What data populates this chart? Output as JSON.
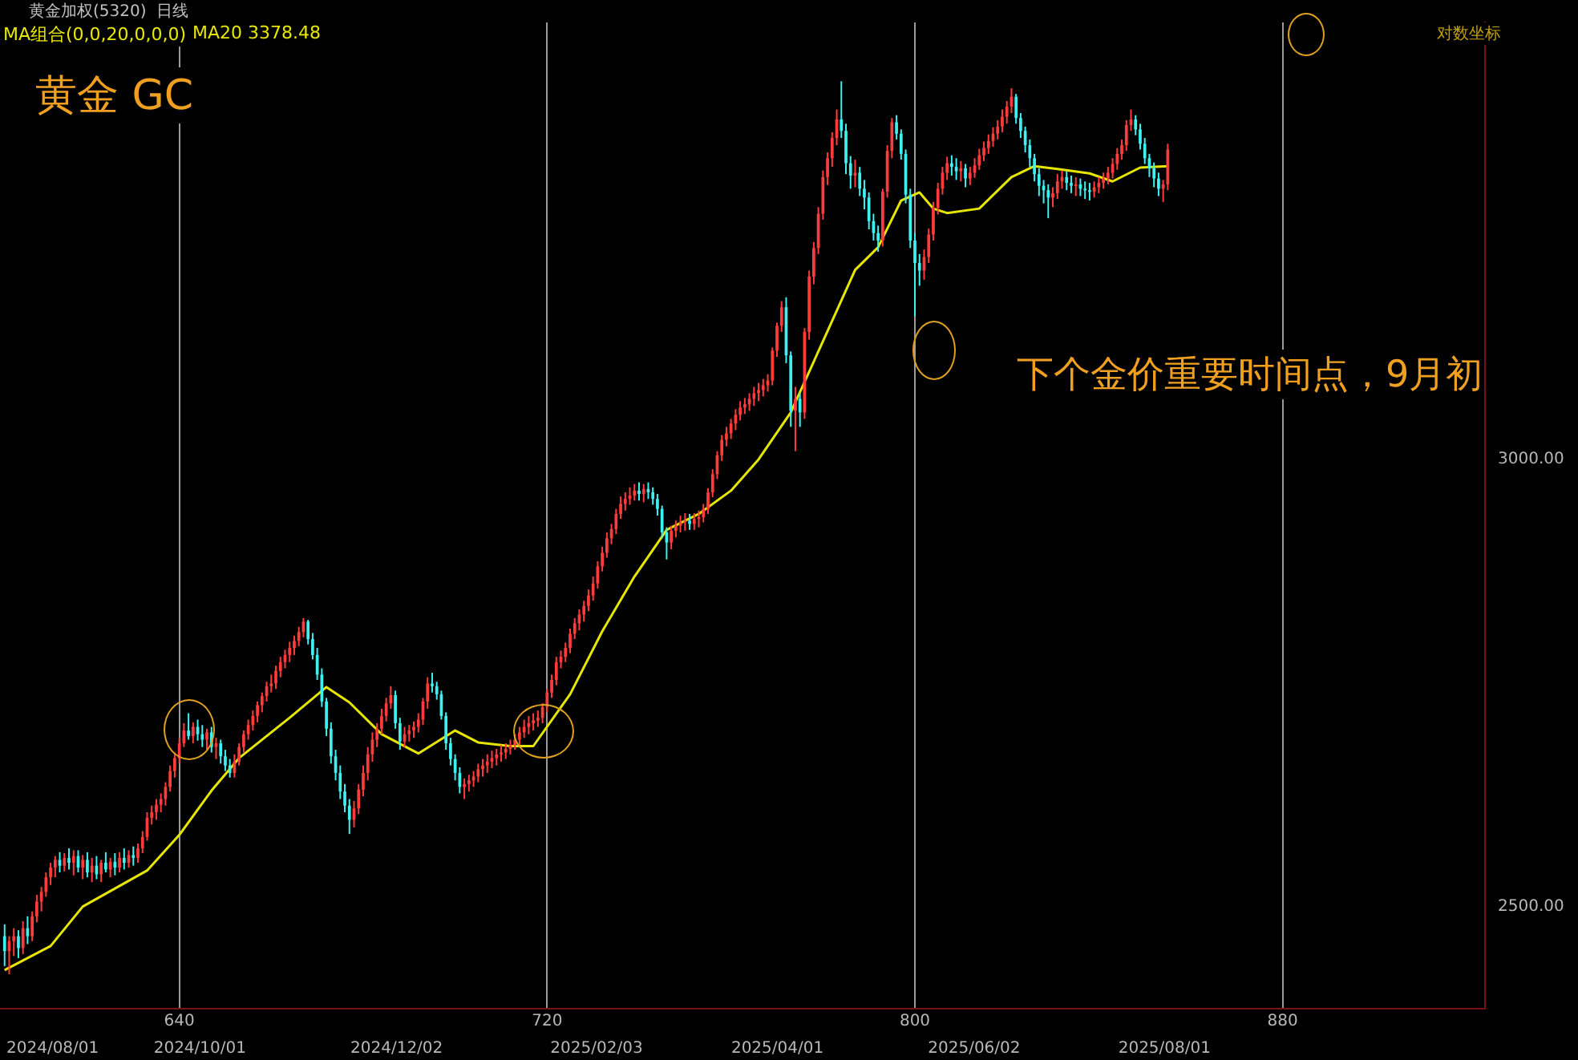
{
  "chart_data": {
    "type": "candlestick",
    "title": "黄金 GC",
    "subtitle": "黄金加权(5320)  日线",
    "annotations": [
      "MA组合(0,0,20,0,0,0)",
      "对数坐标",
      "下个金价重要时间点，9月初"
    ],
    "xlim": [
      601,
      924
    ],
    "xticks": [
      640,
      720,
      800,
      880
    ],
    "x2lim": [
      "2024-07-30",
      "2025-11-10"
    ],
    "x2ticks": [
      {
        "value": "2024-08-01",
        "label": "2024/08/01"
      },
      {
        "value": "2024-10-01",
        "label": "2024/10/01"
      },
      {
        "value": "2024-12-02",
        "label": "2024/12/02"
      },
      {
        "value": "2025-02-03",
        "label": "2025/02/03"
      },
      {
        "value": "2025-04-01",
        "label": "2025/04/01"
      },
      {
        "value": "2025-06-02",
        "label": "2025/06/02"
      },
      {
        "value": "2025-08-01",
        "label": "2025/08/01"
      }
    ],
    "ylim": [
      2398,
      3585
    ],
    "yticks": [
      {
        "value": 2500,
        "label": "2500.00"
      },
      {
        "value": 3000,
        "label": "3000.00"
      }
    ],
    "log": "y",
    "grid": "x",
    "legend": "top left",
    "series": [
      {
        "colors": [
          "#3ef0f0",
          "#ff3b3b",
          "#ff3b3b",
          "#3ef0f0",
          "#ff3b3b",
          "#3ef0f0",
          "#ff3b3b",
          "#ff3b3b",
          "#ff3b3b",
          "#ff3b3b",
          "#ff3b3b",
          "#ff3b3b",
          "#3ef0f0",
          "#ff3b3b",
          "#3ef0f0",
          "#ff3b3b",
          "#3ef0f0",
          "#ff3b3b",
          "#3ef0f0",
          "#ff3b3b",
          "#3ef0f0",
          "#ff3b3b",
          "#3ef0f0",
          "#ff3b3b",
          "#3ef0f0",
          "#ff3b3b",
          "#3ef0f0",
          "#ff3b3b",
          "#3ef0f0",
          "#ff3b3b",
          "#ff3b3b",
          "#ff3b3b",
          "#ff3b3b",
          "#ff3b3b",
          "#ff3b3b",
          "#ff3b3b",
          "#ff3b3b",
          "#ff3b3b",
          "#ff3b3b",
          "#ff3b3b",
          "#3ef0f0",
          "#ff3b3b",
          "#3ef0f0",
          "#3ef0f0",
          "#ff3b3b",
          "#3ef0f0",
          "#ff3b3b",
          "#3ef0f0",
          "#3ef0f0",
          "#3ef0f0",
          "#ff3b3b",
          "#ff3b3b",
          "#ff3b3b",
          "#ff3b3b",
          "#ff3b3b",
          "#ff3b3b",
          "#ff3b3b",
          "#ff3b3b",
          "#ff3b3b",
          "#ff3b3b",
          "#ff3b3b",
          "#ff3b3b",
          "#ff3b3b",
          "#ff3b3b",
          "#ff3b3b",
          "#ff3b3b",
          "#3ef0f0",
          "#3ef0f0",
          "#3ef0f0",
          "#3ef0f0",
          "#3ef0f0",
          "#3ef0f0",
          "#3ef0f0",
          "#3ef0f0",
          "#3ef0f0",
          "#3ef0f0",
          "#ff3b3b",
          "#ff3b3b",
          "#ff3b3b",
          "#ff3b3b",
          "#ff3b3b",
          "#ff3b3b",
          "#ff3b3b",
          "#ff3b3b",
          "#ff3b3b",
          "#3ef0f0",
          "#3ef0f0",
          "#ff3b3b",
          "#ff3b3b",
          "#ff3b3b",
          "#ff3b3b",
          "#ff3b3b",
          "#ff3b3b",
          "#3ef0f0",
          "#3ef0f0",
          "#3ef0f0",
          "#3ef0f0",
          "#3ef0f0",
          "#3ef0f0",
          "#3ef0f0",
          "#ff3b3b",
          "#ff3b3b",
          "#ff3b3b",
          "#ff3b3b",
          "#ff3b3b",
          "#ff3b3b",
          "#ff3b3b",
          "#ff3b3b",
          "#ff3b3b",
          "#ff3b3b",
          "#ff3b3b",
          "#ff3b3b",
          "#ff3b3b",
          "#ff3b3b",
          "#ff3b3b",
          "#ff3b3b",
          "#ff3b3b",
          "#ff3b3b",
          "#ff3b3b",
          "#ff3b3b",
          "#ff3b3b",
          "#ff3b3b",
          "#ff3b3b",
          "#ff3b3b",
          "#ff3b3b",
          "#ff3b3b",
          "#ff3b3b",
          "#ff3b3b",
          "#ff3b3b",
          "#ff3b3b",
          "#ff3b3b",
          "#ff3b3b",
          "#ff3b3b",
          "#ff3b3b",
          "#ff3b3b",
          "#ff3b3b",
          "#ff3b3b",
          "#ff3b3b",
          "#3ef0f0",
          "#ff3b3b",
          "#3ef0f0",
          "#3ef0f0",
          "#3ef0f0",
          "#3ef0f0",
          "#3ef0f0",
          "#ff3b3b",
          "#ff3b3b",
          "#ff3b3b",
          "#ff3b3b",
          "#3ef0f0",
          "#ff3b3b",
          "#ff3b3b",
          "#ff3b3b",
          "#ff3b3b",
          "#ff3b3b",
          "#ff3b3b",
          "#ff3b3b",
          "#ff3b3b",
          "#ff3b3b",
          "#ff3b3b",
          "#ff3b3b",
          "#ff3b3b",
          "#ff3b3b",
          "#ff3b3b",
          "#ff3b3b",
          "#ff3b3b",
          "#ff3b3b",
          "#ff3b3b",
          "#ff3b3b",
          "#ff3b3b",
          "#3ef0f0",
          "#3ef0f0",
          "#ff3b3b",
          "#3ef0f0",
          "#ff3b3b",
          "#ff3b3b",
          "#ff3b3b",
          "#ff3b3b",
          "#ff3b3b",
          "#ff3b3b",
          "#ff3b3b",
          "#ff3b3b",
          "#3ef0f0",
          "#3ef0f0",
          "#3ef0f0",
          "#ff3b3b",
          "#3ef0f0",
          "#3ef0f0",
          "#3ef0f0",
          "#3ef0f0",
          "#3ef0f0",
          "#ff3b3b",
          "#ff3b3b",
          "#ff3b3b",
          "#3ef0f0",
          "#3ef0f0",
          "#3ef0f0",
          "#3ef0f0",
          "#3ef0f0",
          "#3ef0f0",
          "#ff3b3b",
          "#ff3b3b",
          "#ff3b3b",
          "#ff3b3b",
          "#ff3b3b",
          "#ff3b3b",
          "#3ef0f0",
          "#3ef0f0",
          "#ff3b3b",
          "#3ef0f0",
          "#ff3b3b",
          "#ff3b3b",
          "#ff3b3b",
          "#ff3b3b",
          "#ff3b3b",
          "#ff3b3b",
          "#ff3b3b",
          "#ff3b3b",
          "#ff3b3b",
          "#ff3b3b",
          "#3ef0f0",
          "#3ef0f0",
          "#3ef0f0",
          "#3ef0f0",
          "#3ef0f0",
          "#3ef0f0",
          "#3ef0f0",
          "#3ef0f0",
          "#ff3b3b",
          "#ff3b3b",
          "#ff3b3b",
          "#3ef0f0",
          "#3ef0f0",
          "#ff3b3b",
          "#3ef0f0",
          "#3ef0f0",
          "#3ef0f0",
          "#ff3b3b",
          "#ff3b3b",
          "#ff3b3b",
          "#ff3b3b",
          "#ff3b3b",
          "#ff3b3b",
          "#ff3b3b",
          "#ff3b3b",
          "#ff3b3b",
          "#3ef0f0",
          "#3ef0f0",
          "#3ef0f0",
          "#3ef0f0",
          "#3ef0f0",
          "#3ef0f0",
          "#ff3b3b",
          "#ff3b3b"
        ],
        "x": [
          602,
          603,
          604,
          605,
          606,
          607,
          608,
          609,
          610,
          611,
          612,
          613,
          614,
          615,
          616,
          617,
          618,
          619,
          620,
          621,
          622,
          623,
          624,
          625,
          626,
          627,
          628,
          629,
          630,
          631,
          632,
          633,
          634,
          635,
          636,
          637,
          638,
          639,
          640,
          641,
          642,
          643,
          644,
          645,
          646,
          647,
          648,
          649,
          650,
          651,
          652,
          653,
          654,
          655,
          656,
          657,
          658,
          659,
          660,
          661,
          662,
          663,
          664,
          665,
          666,
          667,
          668,
          669,
          670,
          671,
          672,
          673,
          674,
          675,
          676,
          677,
          678,
          679,
          680,
          681,
          682,
          683,
          684,
          685,
          686,
          687,
          688,
          689,
          690,
          691,
          692,
          693,
          694,
          695,
          696,
          697,
          698,
          699,
          700,
          701,
          702,
          703,
          704,
          705,
          706,
          707,
          708,
          709,
          710,
          711,
          712,
          713,
          714,
          715,
          716,
          717,
          718,
          719,
          720,
          721,
          722,
          723,
          724,
          725,
          726,
          727,
          728,
          729,
          730,
          731,
          732,
          733,
          734,
          735,
          736,
          737,
          738,
          739,
          740,
          741,
          742,
          743,
          744,
          745,
          746,
          747,
          748,
          749,
          750,
          751,
          752,
          753,
          754,
          755,
          756,
          757,
          758,
          759,
          760,
          761,
          762,
          763,
          764,
          765,
          766,
          767,
          768,
          769,
          770,
          771,
          772,
          773,
          774,
          775,
          776,
          777,
          778,
          779,
          780,
          781,
          782,
          783,
          784,
          785,
          786,
          787,
          788,
          789,
          790,
          791,
          792,
          793,
          794,
          795,
          796,
          797,
          798,
          799,
          800,
          801,
          802,
          803,
          804,
          805,
          806,
          807,
          808,
          809,
          810,
          811,
          812,
          813,
          814,
          815,
          816,
          817,
          818,
          819,
          820,
          821,
          822,
          823,
          824,
          825,
          826,
          827,
          828,
          829,
          830,
          831,
          832,
          833,
          834,
          835,
          836,
          837,
          838,
          839,
          840,
          841,
          842,
          843,
          844,
          845,
          846,
          847,
          848,
          849,
          850,
          851,
          852,
          853,
          854,
          855
        ],
        "ohlc": [
          [
            2470,
            2482,
            2440,
            2455
          ],
          [
            2455,
            2470,
            2432,
            2465
          ],
          [
            2465,
            2478,
            2450,
            2470
          ],
          [
            2470,
            2476,
            2448,
            2458
          ],
          [
            2458,
            2485,
            2452,
            2478
          ],
          [
            2478,
            2490,
            2462,
            2470
          ],
          [
            2470,
            2495,
            2465,
            2490
          ],
          [
            2490,
            2512,
            2484,
            2505
          ],
          [
            2505,
            2520,
            2495,
            2515
          ],
          [
            2515,
            2535,
            2510,
            2530
          ],
          [
            2530,
            2545,
            2522,
            2540
          ],
          [
            2540,
            2552,
            2530,
            2548
          ],
          [
            2548,
            2556,
            2535,
            2542
          ],
          [
            2542,
            2555,
            2536,
            2550
          ],
          [
            2550,
            2560,
            2538,
            2545
          ],
          [
            2545,
            2558,
            2532,
            2552
          ],
          [
            2552,
            2558,
            2535,
            2540
          ],
          [
            2540,
            2553,
            2528,
            2548
          ],
          [
            2548,
            2556,
            2530,
            2535
          ],
          [
            2535,
            2550,
            2525,
            2542
          ],
          [
            2542,
            2552,
            2528,
            2533
          ],
          [
            2533,
            2548,
            2525,
            2545
          ],
          [
            2545,
            2556,
            2535,
            2538
          ],
          [
            2538,
            2550,
            2530,
            2546
          ],
          [
            2546,
            2555,
            2532,
            2540
          ],
          [
            2540,
            2556,
            2535,
            2550
          ],
          [
            2550,
            2560,
            2538,
            2545
          ],
          [
            2545,
            2558,
            2540,
            2553
          ],
          [
            2553,
            2562,
            2542,
            2550
          ],
          [
            2550,
            2565,
            2545,
            2560
          ],
          [
            2560,
            2578,
            2555,
            2572
          ],
          [
            2572,
            2598,
            2568,
            2592
          ],
          [
            2592,
            2605,
            2585,
            2598
          ],
          [
            2598,
            2612,
            2590,
            2606
          ],
          [
            2606,
            2618,
            2598,
            2612
          ],
          [
            2612,
            2630,
            2605,
            2625
          ],
          [
            2625,
            2648,
            2620,
            2642
          ],
          [
            2642,
            2662,
            2635,
            2656
          ],
          [
            2656,
            2678,
            2650,
            2672
          ],
          [
            2672,
            2694,
            2668,
            2686
          ],
          [
            2686,
            2705,
            2676,
            2680
          ],
          [
            2680,
            2695,
            2672,
            2690
          ],
          [
            2690,
            2698,
            2675,
            2682
          ],
          [
            2682,
            2692,
            2668,
            2676
          ],
          [
            2676,
            2688,
            2665,
            2684
          ],
          [
            2684,
            2690,
            2662,
            2668
          ],
          [
            2668,
            2678,
            2655,
            2672
          ],
          [
            2672,
            2676,
            2650,
            2658
          ],
          [
            2658,
            2665,
            2642,
            2648
          ],
          [
            2648,
            2655,
            2635,
            2640
          ],
          [
            2640,
            2660,
            2635,
            2652
          ],
          [
            2652,
            2672,
            2648,
            2668
          ],
          [
            2668,
            2686,
            2662,
            2682
          ],
          [
            2682,
            2698,
            2676,
            2692
          ],
          [
            2692,
            2708,
            2686,
            2702
          ],
          [
            2702,
            2718,
            2695,
            2714
          ],
          [
            2714,
            2728,
            2706,
            2724
          ],
          [
            2724,
            2740,
            2718,
            2735
          ],
          [
            2735,
            2748,
            2728,
            2738
          ],
          [
            2738,
            2758,
            2732,
            2752
          ],
          [
            2752,
            2768,
            2745,
            2762
          ],
          [
            2762,
            2776,
            2755,
            2770
          ],
          [
            2770,
            2785,
            2762,
            2778
          ],
          [
            2778,
            2792,
            2770,
            2786
          ],
          [
            2786,
            2802,
            2780,
            2796
          ],
          [
            2796,
            2812,
            2790,
            2808
          ],
          [
            2808,
            2810,
            2782,
            2788
          ],
          [
            2788,
            2795,
            2765,
            2770
          ],
          [
            2770,
            2778,
            2742,
            2748
          ],
          [
            2748,
            2755,
            2712,
            2718
          ],
          [
            2718,
            2722,
            2680,
            2688
          ],
          [
            2688,
            2695,
            2650,
            2658
          ],
          [
            2658,
            2665,
            2632,
            2640
          ],
          [
            2640,
            2648,
            2612,
            2620
          ],
          [
            2620,
            2628,
            2598,
            2605
          ],
          [
            2605,
            2612,
            2575,
            2590
          ],
          [
            2590,
            2610,
            2582,
            2602
          ],
          [
            2602,
            2628,
            2596,
            2622
          ],
          [
            2622,
            2648,
            2615,
            2640
          ],
          [
            2640,
            2668,
            2632,
            2660
          ],
          [
            2660,
            2684,
            2652,
            2676
          ],
          [
            2676,
            2694,
            2668,
            2688
          ],
          [
            2688,
            2710,
            2682,
            2702
          ],
          [
            2702,
            2722,
            2696,
            2716
          ],
          [
            2716,
            2735,
            2710,
            2725
          ],
          [
            2725,
            2730,
            2688,
            2694
          ],
          [
            2694,
            2700,
            2665,
            2674
          ],
          [
            2674,
            2690,
            2668,
            2682
          ],
          [
            2682,
            2692,
            2674,
            2686
          ],
          [
            2686,
            2696,
            2678,
            2690
          ],
          [
            2690,
            2705,
            2684,
            2698
          ],
          [
            2698,
            2722,
            2692,
            2718
          ],
          [
            2718,
            2745,
            2710,
            2738
          ],
          [
            2738,
            2750,
            2728,
            2735
          ],
          [
            2735,
            2740,
            2720,
            2726
          ],
          [
            2726,
            2730,
            2698,
            2702
          ],
          [
            2702,
            2706,
            2665,
            2672
          ],
          [
            2672,
            2678,
            2648,
            2655
          ],
          [
            2655,
            2660,
            2632,
            2640
          ],
          [
            2640,
            2646,
            2618,
            2625
          ],
          [
            2625,
            2634,
            2612,
            2628
          ],
          [
            2628,
            2638,
            2620,
            2632
          ],
          [
            2632,
            2642,
            2625,
            2636
          ],
          [
            2636,
            2650,
            2630,
            2644
          ],
          [
            2644,
            2655,
            2636,
            2648
          ],
          [
            2648,
            2660,
            2640,
            2652
          ],
          [
            2652,
            2664,
            2645,
            2656
          ],
          [
            2656,
            2666,
            2648,
            2660
          ],
          [
            2660,
            2670,
            2652,
            2662
          ],
          [
            2662,
            2672,
            2655,
            2666
          ],
          [
            2666,
            2676,
            2660,
            2670
          ],
          [
            2670,
            2682,
            2665,
            2676
          ],
          [
            2676,
            2690,
            2670,
            2684
          ],
          [
            2684,
            2698,
            2678,
            2690
          ],
          [
            2690,
            2702,
            2682,
            2694
          ],
          [
            2694,
            2705,
            2686,
            2697
          ],
          [
            2697,
            2708,
            2690,
            2700
          ],
          [
            2700,
            2716,
            2694,
            2712
          ],
          [
            2712,
            2732,
            2706,
            2728
          ],
          [
            2728,
            2748,
            2722,
            2742
          ],
          [
            2742,
            2768,
            2736,
            2762
          ],
          [
            2762,
            2775,
            2755,
            2768
          ],
          [
            2768,
            2784,
            2762,
            2778
          ],
          [
            2778,
            2800,
            2772,
            2794
          ],
          [
            2794,
            2812,
            2788,
            2806
          ],
          [
            2806,
            2822,
            2798,
            2816
          ],
          [
            2816,
            2832,
            2808,
            2826
          ],
          [
            2826,
            2845,
            2820,
            2838
          ],
          [
            2838,
            2860,
            2832,
            2852
          ],
          [
            2852,
            2878,
            2846,
            2872
          ],
          [
            2872,
            2895,
            2866,
            2888
          ],
          [
            2888,
            2912,
            2882,
            2905
          ],
          [
            2905,
            2922,
            2898,
            2916
          ],
          [
            2916,
            2940,
            2910,
            2934
          ],
          [
            2934,
            2955,
            2928,
            2946
          ],
          [
            2946,
            2960,
            2938,
            2952
          ],
          [
            2952,
            2966,
            2945,
            2956
          ],
          [
            2956,
            2970,
            2950,
            2962
          ],
          [
            2962,
            2972,
            2950,
            2958
          ],
          [
            2958,
            2970,
            2948,
            2964
          ],
          [
            2964,
            2972,
            2952,
            2960
          ],
          [
            2960,
            2966,
            2945,
            2952
          ],
          [
            2952,
            2958,
            2932,
            2940
          ],
          [
            2940,
            2944,
            2905,
            2912
          ],
          [
            2912,
            2918,
            2880,
            2900
          ],
          [
            2900,
            2920,
            2892,
            2914
          ],
          [
            2914,
            2926,
            2906,
            2920
          ],
          [
            2920,
            2932,
            2912,
            2924
          ],
          [
            2924,
            2935,
            2914,
            2926
          ],
          [
            2926,
            2934,
            2915,
            2922
          ],
          [
            2922,
            2935,
            2915,
            2928
          ],
          [
            2928,
            2938,
            2918,
            2930
          ],
          [
            2930,
            2946,
            2924,
            2940
          ],
          [
            2940,
            2965,
            2934,
            2960
          ],
          [
            2960,
            2988,
            2954,
            2982
          ],
          [
            2982,
            3010,
            2976,
            3005
          ],
          [
            3005,
            3030,
            2998,
            3024
          ],
          [
            3024,
            3040,
            3016,
            3032
          ],
          [
            3032,
            3050,
            3025,
            3044
          ],
          [
            3044,
            3062,
            3036,
            3055
          ],
          [
            3055,
            3072,
            3048,
            3064
          ],
          [
            3064,
            3076,
            3056,
            3068
          ],
          [
            3068,
            3082,
            3060,
            3075
          ],
          [
            3075,
            3090,
            3066,
            3082
          ],
          [
            3082,
            3095,
            3072,
            3086
          ],
          [
            3086,
            3100,
            3078,
            3092
          ],
          [
            3092,
            3106,
            3084,
            3098
          ],
          [
            3098,
            3140,
            3092,
            3136
          ],
          [
            3136,
            3172,
            3128,
            3168
          ],
          [
            3168,
            3200,
            3160,
            3192
          ],
          [
            3192,
            3205,
            3120,
            3130
          ],
          [
            3130,
            3135,
            3040,
            3060
          ],
          [
            3060,
            3090,
            3010,
            3075
          ],
          [
            3075,
            3082,
            3040,
            3058
          ],
          [
            3058,
            3165,
            3050,
            3160
          ],
          [
            3160,
            3240,
            3150,
            3232
          ],
          [
            3232,
            3278,
            3222,
            3270
          ],
          [
            3270,
            3325,
            3262,
            3316
          ],
          [
            3316,
            3375,
            3308,
            3366
          ],
          [
            3366,
            3400,
            3355,
            3392
          ],
          [
            3392,
            3428,
            3380,
            3420
          ],
          [
            3420,
            3460,
            3410,
            3446
          ],
          [
            3446,
            3500,
            3420,
            3430
          ],
          [
            3430,
            3440,
            3370,
            3385
          ],
          [
            3385,
            3395,
            3350,
            3368
          ],
          [
            3368,
            3390,
            3352,
            3372
          ],
          [
            3372,
            3380,
            3340,
            3350
          ],
          [
            3350,
            3362,
            3322,
            3338
          ],
          [
            3338,
            3345,
            3295,
            3306
          ],
          [
            3306,
            3316,
            3280,
            3290
          ],
          [
            3290,
            3300,
            3265,
            3280
          ],
          [
            3280,
            3350,
            3272,
            3346
          ],
          [
            3346,
            3410,
            3338,
            3402
          ],
          [
            3402,
            3448,
            3392,
            3442
          ],
          [
            3442,
            3452,
            3418,
            3426
          ],
          [
            3426,
            3432,
            3390,
            3398
          ],
          [
            3398,
            3404,
            3330,
            3342
          ],
          [
            3342,
            3350,
            3270,
            3280
          ],
          [
            3280,
            3290,
            3180,
            3250
          ],
          [
            3250,
            3262,
            3220,
            3240
          ],
          [
            3240,
            3268,
            3228,
            3258
          ],
          [
            3258,
            3296,
            3250,
            3288
          ],
          [
            3288,
            3332,
            3280,
            3324
          ],
          [
            3324,
            3358,
            3315,
            3350
          ],
          [
            3350,
            3380,
            3342,
            3372
          ],
          [
            3372,
            3394,
            3362,
            3385
          ],
          [
            3385,
            3396,
            3368,
            3380
          ],
          [
            3380,
            3392,
            3362,
            3374
          ],
          [
            3374,
            3388,
            3360,
            3378
          ],
          [
            3378,
            3384,
            3352,
            3364
          ],
          [
            3364,
            3380,
            3355,
            3372
          ],
          [
            3372,
            3392,
            3365,
            3382
          ],
          [
            3382,
            3405,
            3376,
            3396
          ],
          [
            3396,
            3415,
            3388,
            3406
          ],
          [
            3406,
            3425,
            3398,
            3416
          ],
          [
            3416,
            3435,
            3408,
            3426
          ],
          [
            3426,
            3445,
            3418,
            3436
          ],
          [
            3436,
            3460,
            3428,
            3450
          ],
          [
            3450,
            3472,
            3440,
            3464
          ],
          [
            3464,
            3490,
            3455,
            3478
          ],
          [
            3478,
            3482,
            3440,
            3448
          ],
          [
            3448,
            3455,
            3420,
            3430
          ],
          [
            3430,
            3436,
            3400,
            3410
          ],
          [
            3410,
            3418,
            3380,
            3392
          ],
          [
            3392,
            3398,
            3360,
            3370
          ],
          [
            3370,
            3378,
            3340,
            3354
          ],
          [
            3354,
            3362,
            3330,
            3348
          ],
          [
            3348,
            3356,
            3310,
            3338
          ],
          [
            3338,
            3352,
            3325,
            3344
          ],
          [
            3344,
            3370,
            3336,
            3360
          ],
          [
            3360,
            3375,
            3350,
            3366
          ],
          [
            3366,
            3374,
            3348,
            3358
          ],
          [
            3358,
            3368,
            3344,
            3354
          ],
          [
            3354,
            3366,
            3340,
            3356
          ],
          [
            3356,
            3364,
            3340,
            3350
          ],
          [
            3350,
            3360,
            3336,
            3348
          ],
          [
            3348,
            3358,
            3334,
            3346
          ],
          [
            3346,
            3360,
            3338,
            3352
          ],
          [
            3352,
            3366,
            3344,
            3358
          ],
          [
            3358,
            3372,
            3350,
            3364
          ],
          [
            3364,
            3380,
            3356,
            3372
          ],
          [
            3372,
            3392,
            3364,
            3384
          ],
          [
            3384,
            3406,
            3376,
            3398
          ],
          [
            3398,
            3418,
            3390,
            3410
          ],
          [
            3410,
            3445,
            3402,
            3438
          ],
          [
            3438,
            3460,
            3430,
            3446
          ],
          [
            3446,
            3452,
            3424,
            3432
          ],
          [
            3432,
            3440,
            3404,
            3412
          ],
          [
            3412,
            3420,
            3384,
            3392
          ],
          [
            3392,
            3398,
            3366,
            3378
          ],
          [
            3378,
            3386,
            3352,
            3364
          ],
          [
            3364,
            3372,
            3340,
            3350
          ],
          [
            3350,
            3362,
            3332,
            3356
          ],
          [
            3356,
            3412,
            3348,
            3404
          ]
        ]
      },
      {
        "type": "line",
        "name": "MA20 3378.48",
        "color": "#e6e600",
        "x": [
          602,
          612,
          619,
          633,
          640,
          647,
          653,
          664,
          672,
          677,
          684,
          692,
          700,
          705,
          712,
          717,
          725,
          732,
          739,
          746,
          753,
          760,
          766,
          773,
          780,
          787,
          792,
          797,
          801,
          804,
          807,
          814,
          821,
          826,
          831,
          838,
          843,
          849,
          855
        ],
        "values": [
          2436,
          2460,
          2500,
          2537,
          2574,
          2621,
          2656,
          2700,
          2734,
          2717,
          2682,
          2661,
          2686,
          2673,
          2669,
          2669,
          2726,
          2797,
          2860,
          2915,
          2934,
          2962,
          3000,
          3058,
          3148,
          3241,
          3271,
          3334,
          3345,
          3323,
          3317,
          3323,
          3366,
          3381,
          3377,
          3371,
          3360,
          3379,
          3381
        ]
      }
    ]
  }
}
